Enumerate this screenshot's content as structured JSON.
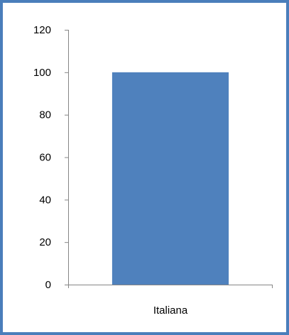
{
  "chart_data": {
    "type": "bar",
    "categories": [
      "Italiana"
    ],
    "values": [
      100
    ],
    "ylim": [
      0,
      120
    ],
    "yticks": [
      0,
      20,
      40,
      60,
      80,
      100,
      120
    ],
    "grid": false,
    "legend": "none",
    "bar_color": "#4f81bd",
    "frame_color": "#4a7ebb"
  }
}
